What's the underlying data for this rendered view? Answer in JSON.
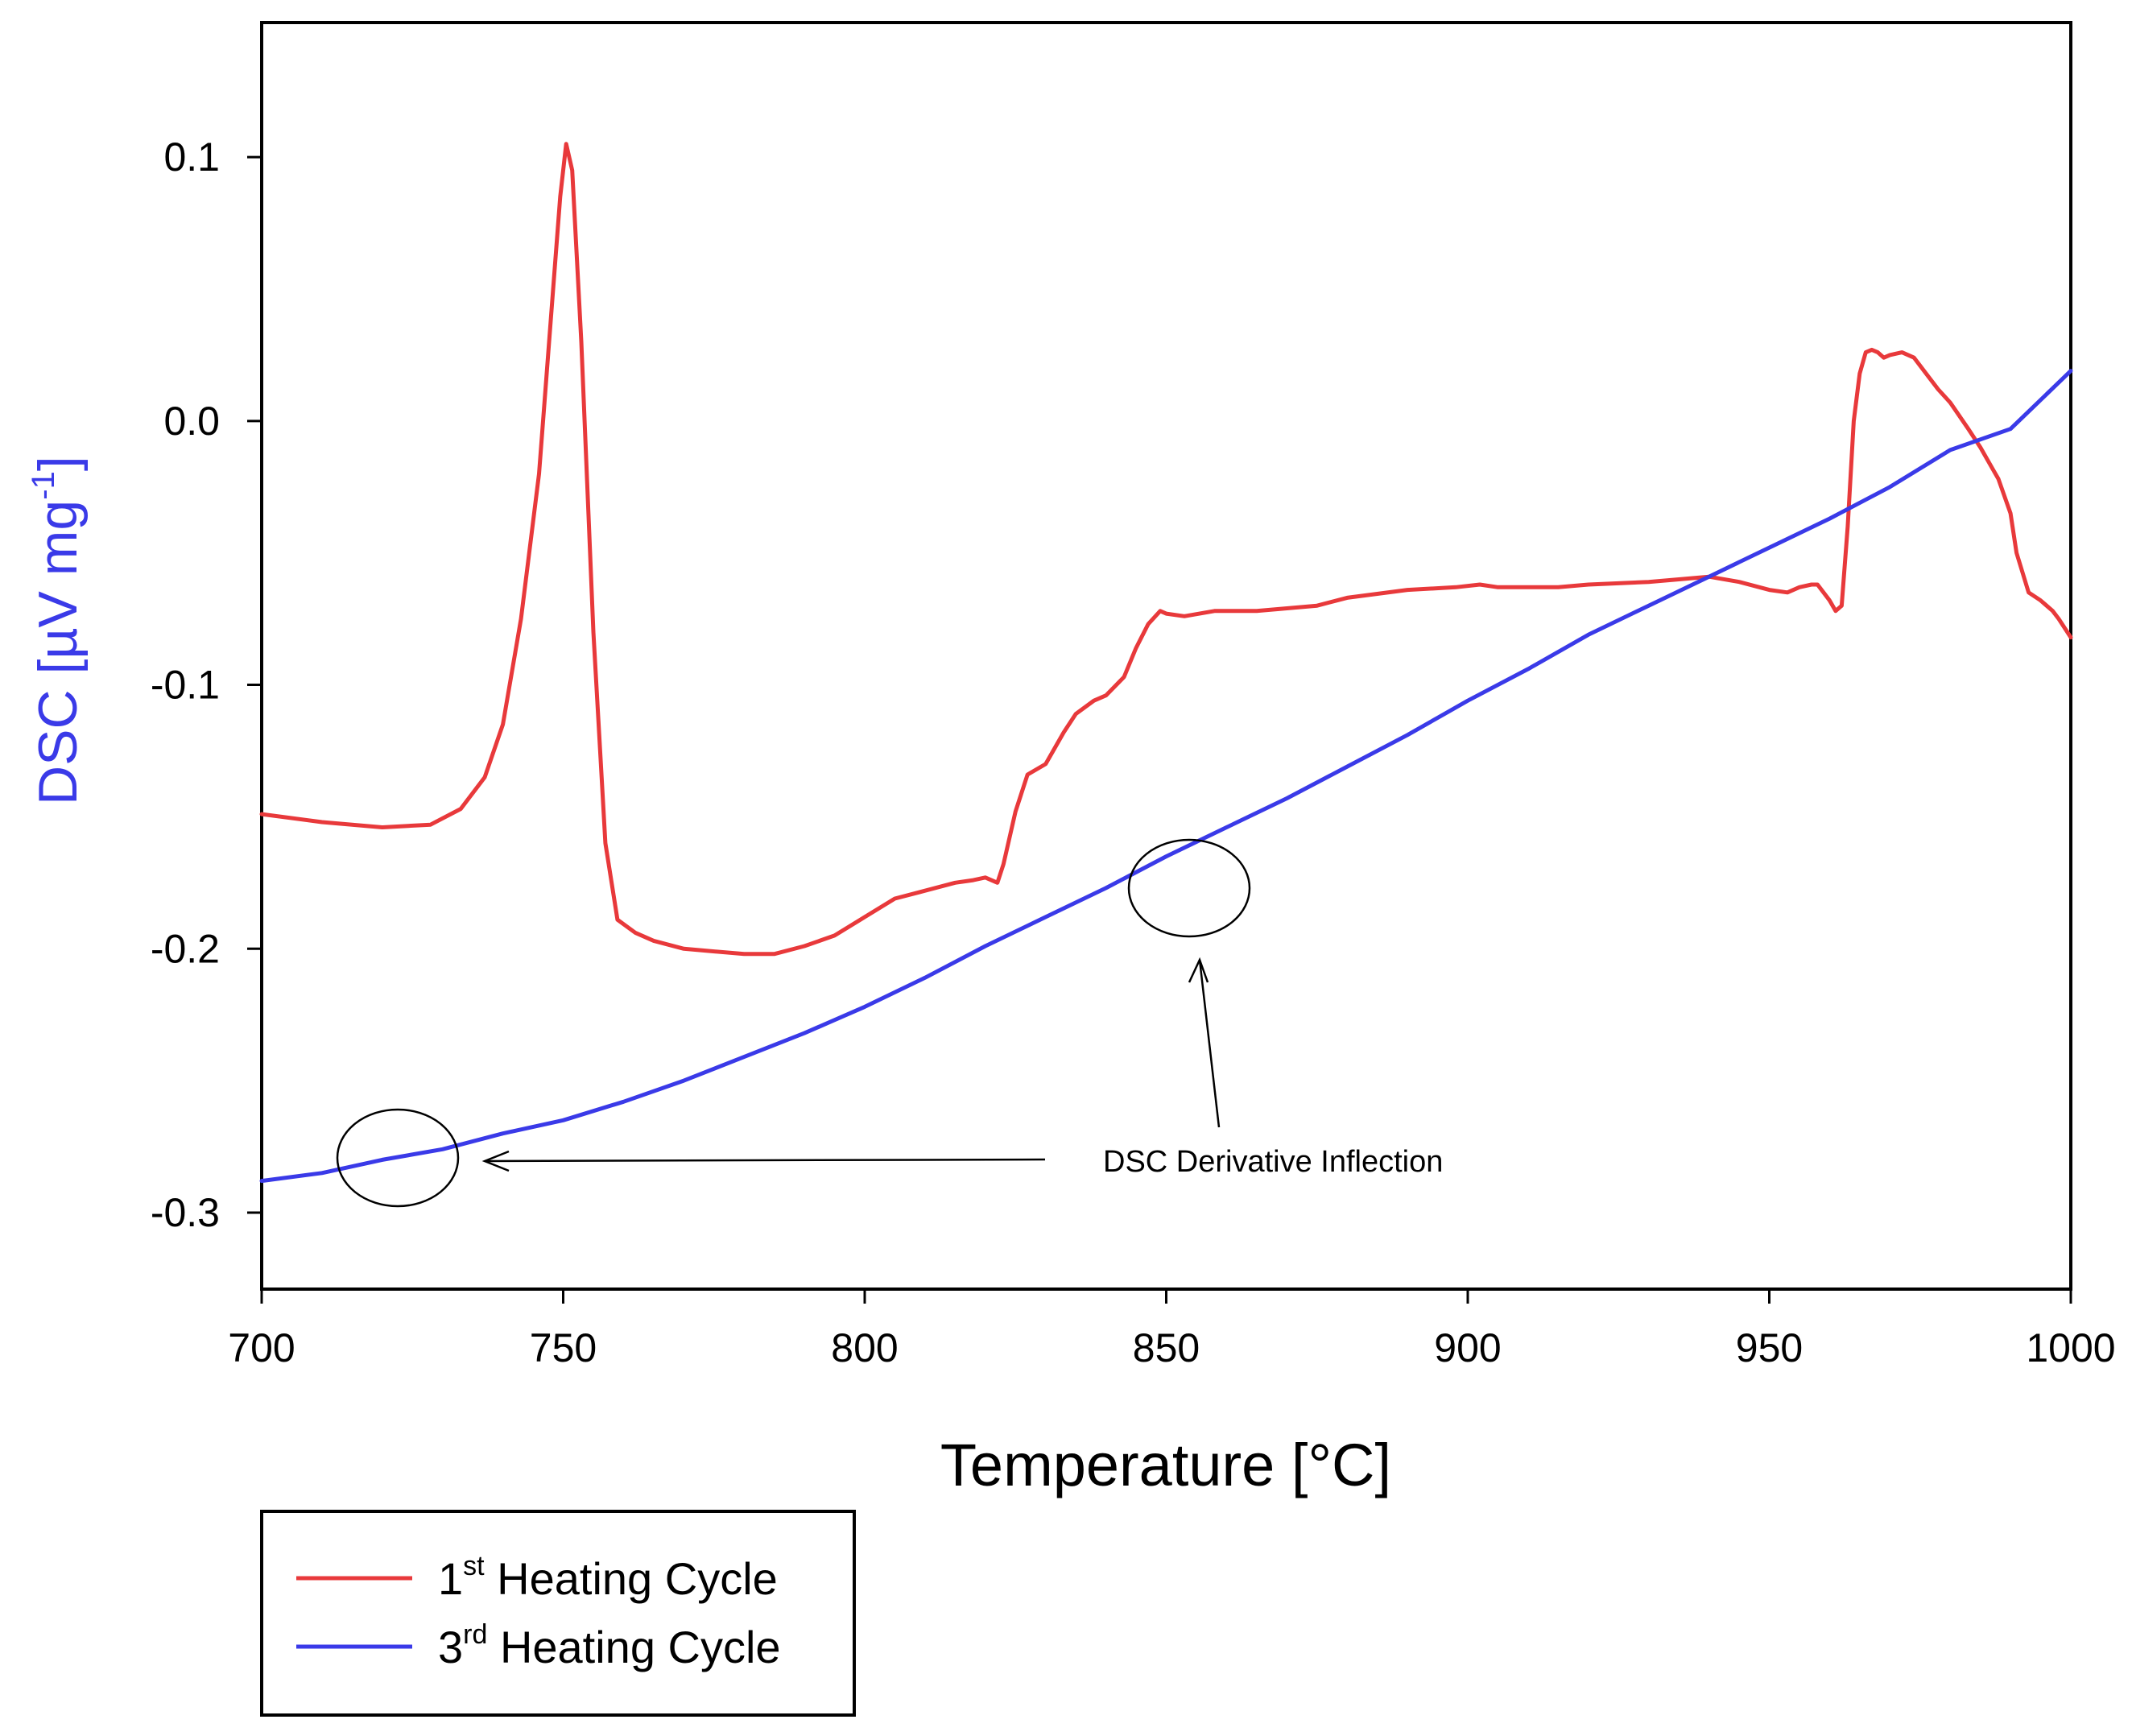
{
  "chart_data": {
    "type": "line",
    "title": "",
    "xlabel": "Temperature [°C]",
    "ylabel": {
      "main": "DSC [µV mg",
      "sup": "-1",
      "close": "]"
    },
    "xlim": [
      700,
      1000
    ],
    "ylim": [
      -0.329,
      0.151
    ],
    "xticks": [
      700,
      750,
      800,
      850,
      900,
      950,
      1000
    ],
    "yticks": [
      0.1,
      0.0,
      -0.1,
      -0.2,
      -0.3
    ],
    "ytick_labels": [
      "0.1",
      "0.0",
      "-0.1",
      "-0.2",
      "-0.3"
    ],
    "series": [
      {
        "name": "1st Heating Cycle",
        "legend": {
          "prefix": "1",
          "sup": "st",
          "suffix": " Heating Cycle"
        },
        "color": "#e8393b",
        "x": [
          700,
          710,
          720,
          728,
          733,
          737,
          740,
          743,
          746,
          748,
          749.5,
          750.5,
          751.5,
          753,
          755,
          757,
          759,
          762,
          765,
          770,
          780,
          785,
          790,
          795,
          800,
          805,
          810,
          815,
          818,
          820,
          822,
          823,
          825,
          827,
          830,
          833,
          835,
          838,
          840,
          843,
          845,
          847,
          849,
          850,
          853,
          858,
          865,
          875,
          880,
          890,
          898,
          902,
          905,
          915,
          920,
          930,
          935,
          940,
          945,
          950,
          953,
          955,
          957,
          958,
          960,
          961,
          962,
          963,
          964,
          965,
          966,
          967,
          968,
          969,
          970,
          972,
          974,
          976,
          978,
          980,
          983,
          985,
          987,
          988,
          990,
          991,
          993,
          995,
          997,
          998,
          1000
        ],
        "y": [
          -0.149,
          -0.152,
          -0.154,
          -0.153,
          -0.147,
          -0.135,
          -0.115,
          -0.075,
          -0.02,
          0.04,
          0.085,
          0.105,
          0.095,
          0.03,
          -0.08,
          -0.16,
          -0.189,
          -0.194,
          -0.197,
          -0.2,
          -0.202,
          -0.202,
          -0.199,
          -0.195,
          -0.188,
          -0.181,
          -0.178,
          -0.175,
          -0.174,
          -0.173,
          -0.175,
          -0.168,
          -0.148,
          -0.134,
          -0.13,
          -0.118,
          -0.111,
          -0.106,
          -0.104,
          -0.097,
          -0.086,
          -0.077,
          -0.072,
          -0.073,
          -0.074,
          -0.072,
          -0.072,
          -0.07,
          -0.067,
          -0.064,
          -0.063,
          -0.062,
          -0.063,
          -0.063,
          -0.062,
          -0.061,
          -0.06,
          -0.059,
          -0.061,
          -0.064,
          -0.065,
          -0.063,
          -0.062,
          -0.062,
          -0.068,
          -0.072,
          -0.07,
          -0.04,
          0.0,
          0.018,
          0.026,
          0.027,
          0.026,
          0.024,
          0.025,
          0.026,
          0.024,
          0.018,
          0.012,
          0.007,
          -0.003,
          -0.01,
          -0.018,
          -0.022,
          -0.035,
          -0.05,
          -0.065,
          -0.068,
          -0.072,
          -0.075,
          -0.082
        ]
      },
      {
        "name": "3rd Heating Cycle",
        "legend": {
          "prefix": "3",
          "sup": "rd",
          "suffix": " Heating Cycle"
        },
        "color": "#3a3ae8",
        "x": [
          700,
          710,
          720,
          730,
          740,
          750,
          760,
          770,
          780,
          790,
          800,
          810,
          820,
          830,
          840,
          850,
          860,
          870,
          880,
          890,
          900,
          910,
          920,
          930,
          940,
          950,
          960,
          970,
          980,
          990,
          1000
        ],
        "y": [
          -0.288,
          -0.285,
          -0.28,
          -0.276,
          -0.27,
          -0.265,
          -0.258,
          -0.25,
          -0.241,
          -0.232,
          -0.222,
          -0.211,
          -0.199,
          -0.188,
          -0.177,
          -0.165,
          -0.154,
          -0.143,
          -0.131,
          -0.119,
          -0.106,
          -0.094,
          -0.081,
          -0.07,
          -0.059,
          -0.048,
          -0.037,
          -0.025,
          -0.011,
          -0.003,
          0.019
        ]
      }
    ],
    "annotations": [
      {
        "text": "DSC Derivative Inflection"
      }
    ],
    "colors": {
      "axis": "#000000",
      "ylabel": "#3a3ae8"
    },
    "legend_position": "bottom-left, below plot"
  }
}
